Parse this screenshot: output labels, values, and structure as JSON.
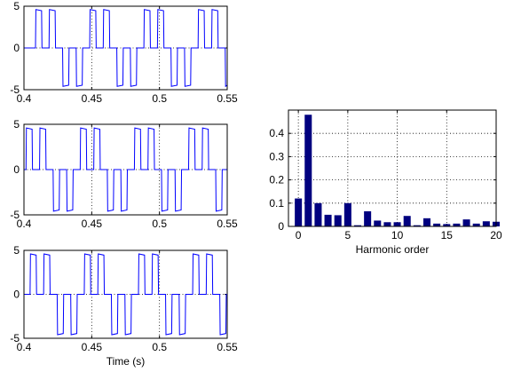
{
  "figure": {
    "background": "#ffffff",
    "line_color": "#0000ff",
    "bar_color": "#00007f"
  },
  "chart_data": [
    {
      "type": "line",
      "xlim": [
        0.4,
        0.55
      ],
      "ylim": [
        -5,
        5
      ],
      "x_ticks": [
        "0.4",
        "0.45",
        "0.5",
        "0.55"
      ],
      "y_ticks": [
        "-5",
        "0",
        "5"
      ],
      "xlabel": "",
      "grid": "dotted",
      "waveform": {
        "amplitude": 4.6,
        "pulses_per_half_period": 2,
        "first_positive_pulse_x": 0.4
      },
      "series": [
        {
          "rise_times": [
            0.4085,
            0.4185,
            0.4285,
            0.4385,
            0.4485,
            0.4585,
            0.4685,
            0.4785,
            0.4885,
            0.4985,
            0.5085,
            0.5185,
            0.5285,
            0.5385,
            0.5485
          ]
        }
      ]
    },
    {
      "type": "line",
      "xlim": [
        0.4,
        0.55
      ],
      "ylim": [
        -5,
        5
      ],
      "x_ticks": [
        "0.4",
        "0.45",
        "0.5",
        "0.55"
      ],
      "y_ticks": [
        "-5",
        "0",
        "5"
      ],
      "xlabel": "",
      "grid": "dotted",
      "series": [
        {
          "rise_times": [
            0.4015,
            0.4115,
            0.4215,
            0.4315,
            0.4415,
            0.4515,
            0.4615,
            0.4715,
            0.4815,
            0.4915,
            0.5015,
            0.5115,
            0.5215,
            0.5315,
            0.5415
          ]
        }
      ]
    },
    {
      "type": "line",
      "xlim": [
        0.4,
        0.55
      ],
      "ylim": [
        -5,
        5
      ],
      "x_ticks": [
        "0.4",
        "0.45",
        "0.5",
        "0.55"
      ],
      "y_ticks": [
        "-5",
        "0",
        "5"
      ],
      "xlabel": "Time (s)",
      "grid": "dotted",
      "series": [
        {
          "rise_times": [
            0.4045,
            0.4145,
            0.4245,
            0.4345,
            0.4445,
            0.4545,
            0.4645,
            0.4745,
            0.4845,
            0.4945,
            0.5045,
            0.5145,
            0.5245,
            0.5345,
            0.5445
          ]
        }
      ]
    },
    {
      "type": "bar",
      "xlim": [
        -1,
        20
      ],
      "ylim": [
        0,
        0.5
      ],
      "x_ticks": [
        "0",
        "5",
        "10",
        "15",
        "20"
      ],
      "y_ticks": [
        "0",
        "0.1",
        "0.2",
        "0.3",
        "0.4"
      ],
      "xlabel": "Harmonic order",
      "grid": "dotted",
      "x": [
        0,
        1,
        2,
        3,
        4,
        5,
        6,
        7,
        8,
        9,
        10,
        11,
        12,
        13,
        14,
        15,
        16,
        17,
        18,
        19,
        20
      ],
      "values": [
        0.12,
        0.48,
        0.1,
        0.05,
        0.048,
        0.1,
        0.005,
        0.065,
        0.025,
        0.018,
        0.018,
        0.045,
        0.005,
        0.035,
        0.012,
        0.01,
        0.012,
        0.03,
        0.012,
        0.022,
        0.02
      ]
    }
  ]
}
